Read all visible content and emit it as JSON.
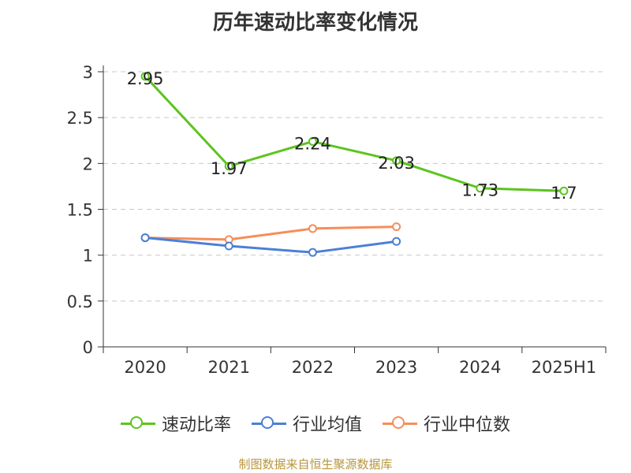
{
  "chart_data": {
    "type": "line",
    "title": "历年速动比率变化情况",
    "categories": [
      "2020",
      "2021",
      "2022",
      "2023",
      "2024",
      "2025H1"
    ],
    "ylim": [
      0,
      3
    ],
    "yticks": [
      "0",
      "0.5",
      "1",
      "1.5",
      "2",
      "2.5",
      "3"
    ],
    "grid": true,
    "legend_position": "bottom",
    "series": [
      {
        "name": "速动比率",
        "color": "#5cc41e",
        "values": [
          2.95,
          1.97,
          2.24,
          2.03,
          1.73,
          1.7
        ],
        "labels": [
          "2.95",
          "1.97",
          "2.24",
          "2.03",
          "1.73",
          "1.7"
        ]
      },
      {
        "name": "行业均值",
        "color": "#4d7fd6",
        "values": [
          1.19,
          1.1,
          1.03,
          1.15,
          null,
          null
        ]
      },
      {
        "name": "行业中位数",
        "color": "#f58e5a",
        "values": [
          1.19,
          1.17,
          1.29,
          1.31,
          null,
          null
        ]
      }
    ]
  },
  "source": "制图数据来自恒生聚源数据库"
}
